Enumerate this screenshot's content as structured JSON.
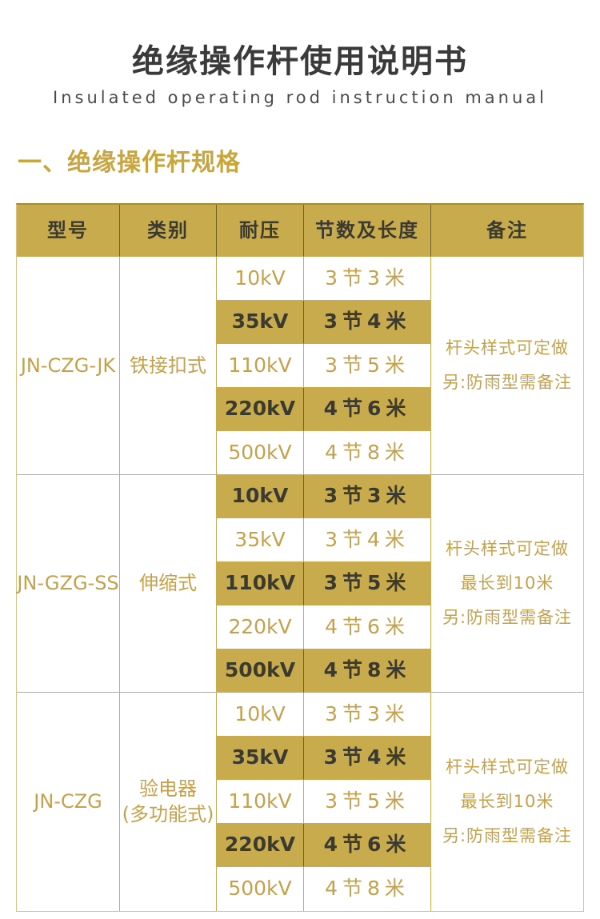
{
  "page": {
    "title": "绝缘操作杆使用说明书",
    "subtitle": "Insulated operating rod instruction manual",
    "section_heading": "一、绝缘操作杆规格"
  },
  "colors": {
    "header_background": "#c8ab4d",
    "highlight_row_background": "#c8ab4d",
    "gold_text": "#c4a14a",
    "dark_text": "#3b3a30",
    "section_heading_color": "#c9a53e",
    "header_divider": "#6f6228"
  },
  "table": {
    "headers": [
      "型号",
      "类别",
      "耐压",
      "节数及长度",
      "备注"
    ],
    "groups": [
      {
        "model": "JN-CZG-JK",
        "category": "铁接扣式",
        "remark_lines": [
          "杆头样式可定做",
          "另:防雨型需备注"
        ],
        "rows": [
          {
            "voltage": "10kV",
            "length": "3节3米"
          },
          {
            "voltage": "35kV",
            "length": "3节4米"
          },
          {
            "voltage": "110kV",
            "length": "3节5米"
          },
          {
            "voltage": "220kV",
            "length": "4节6米"
          },
          {
            "voltage": "500kV",
            "length": "4节8米"
          }
        ]
      },
      {
        "model": "JN-GZG-SS",
        "category": "伸缩式",
        "remark_lines": [
          "杆头样式可定做",
          "最长到10米",
          "另:防雨型需备注"
        ],
        "rows": [
          {
            "voltage": "10kV",
            "length": "3节3米"
          },
          {
            "voltage": "35kV",
            "length": "3节4米"
          },
          {
            "voltage": "110kV",
            "length": "3节5米"
          },
          {
            "voltage": "220kV",
            "length": "4节6米"
          },
          {
            "voltage": "500kV",
            "length": "4节8米"
          }
        ]
      },
      {
        "model": "JN-CZG",
        "category": "验电器",
        "category_line2": "(多功能式)",
        "remark_lines": [
          "杆头样式可定做",
          "最长到10米",
          "另:防雨型需备注"
        ],
        "rows": [
          {
            "voltage": "10kV",
            "length": "3节3米"
          },
          {
            "voltage": "35kV",
            "length": "3节4米"
          },
          {
            "voltage": "110kV",
            "length": "3节5米"
          },
          {
            "voltage": "220kV",
            "length": "4节6米"
          },
          {
            "voltage": "500kV",
            "length": "4节8米"
          }
        ]
      }
    ]
  }
}
